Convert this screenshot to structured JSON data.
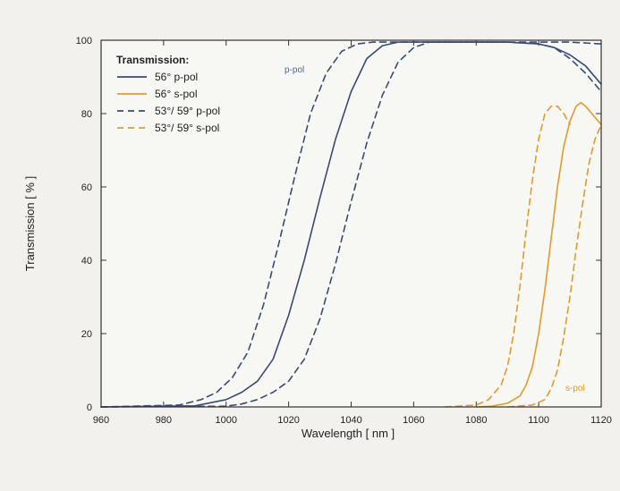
{
  "chart_data": {
    "type": "line",
    "xlabel": "Wavelength [ nm ]",
    "ylabel": "Transmission [ % ]",
    "xlim": [
      960,
      1120
    ],
    "ylim": [
      0,
      100
    ],
    "xticks": [
      "960",
      "980",
      "1000",
      "1020",
      "1040",
      "1060",
      "1080",
      "1100",
      "1120"
    ],
    "yticks": [
      "0",
      "20",
      "40",
      "60",
      "80",
      "100"
    ],
    "grid": false,
    "legend": {
      "title": "Transmission:",
      "placement": "top-left",
      "entries": [
        "56° p-pol",
        "56° s-pol",
        "53°/ 59° p-pol",
        "53°/ 59° s-pol"
      ]
    },
    "annotations": [
      "p-pol",
      "s-pol"
    ],
    "colors": {
      "p": "#3a4a78",
      "s": "#e39a2a"
    },
    "series": [
      {
        "name": "56° p-pol",
        "style": "solid",
        "color": "#3a4a78",
        "x": [
          960,
          990,
          1000,
          1005,
          1010,
          1015,
          1020,
          1025,
          1030,
          1035,
          1040,
          1045,
          1050,
          1055,
          1060,
          1065,
          1070,
          1090,
          1100,
          1105,
          1110,
          1115,
          1120
        ],
        "y": [
          0,
          0.3,
          2,
          4,
          7,
          13,
          25,
          40,
          57,
          73,
          86,
          95,
          98.5,
          99.5,
          99.5,
          99.5,
          99.5,
          99.5,
          99,
          98,
          96,
          93,
          88
        ]
      },
      {
        "name": "56° s-pol",
        "style": "solid",
        "color": "#e39a2a",
        "x": [
          1080,
          1085,
          1090,
          1094,
          1096,
          1098,
          1100,
          1102,
          1104,
          1106,
          1108,
          1110,
          1112,
          1113.5,
          1115,
          1117,
          1118,
          1120
        ],
        "y": [
          0,
          0.2,
          1,
          3,
          6,
          11,
          20,
          32,
          46,
          60,
          71,
          78,
          82,
          83,
          82,
          80,
          79,
          77
        ]
      },
      {
        "name": "53°/ 59° p-pol",
        "style": "dashed",
        "color": "#3a4a78",
        "x": [
          960,
          985,
          992,
          997,
          1002,
          1007,
          1012,
          1017,
          1022,
          1027,
          1032,
          1037,
          1042,
          1047,
          1055,
          1065,
          1090,
          1110,
          1120
        ],
        "y": [
          0,
          0.5,
          2,
          4,
          8,
          15,
          28,
          45,
          63,
          80,
          91,
          97,
          99,
          99.5,
          99.5,
          99.5,
          99.5,
          99.5,
          99
        ]
      },
      {
        "name": "53°/ 59° p-pol",
        "style": "dashed",
        "color": "#3a4a78",
        "x": [
          960,
          1000,
          1005,
          1010,
          1015,
          1020,
          1025,
          1030,
          1035,
          1040,
          1045,
          1050,
          1055,
          1060,
          1065,
          1070,
          1090,
          1100,
          1105,
          1110,
          1115,
          1120
        ],
        "y": [
          0,
          0.2,
          0.8,
          2,
          4,
          7,
          13,
          24,
          39,
          56,
          72,
          85,
          94,
          98,
          99.5,
          99.5,
          99.5,
          99,
          98,
          95,
          91,
          86
        ]
      },
      {
        "name": "53°/ 59° s-pol",
        "style": "dashed",
        "color": "#e39a2a",
        "x": [
          1070,
          1080,
          1084,
          1088,
          1090,
          1092,
          1094,
          1096,
          1098,
          1100,
          1102,
          1104,
          1106,
          1108,
          1110
        ],
        "y": [
          0,
          0.5,
          2,
          6,
          11,
          20,
          33,
          48,
          62,
          73,
          80,
          82,
          82,
          80,
          77
        ]
      },
      {
        "name": "53°/ 59° s-pol",
        "style": "dashed",
        "color": "#e39a2a",
        "x": [
          1090,
          1098,
          1102,
          1104,
          1106,
          1108,
          1110,
          1112,
          1114,
          1116,
          1118,
          1120
        ],
        "y": [
          0,
          0.5,
          2,
          5,
          10,
          19,
          30,
          43,
          55,
          66,
          73,
          77
        ]
      }
    ]
  }
}
